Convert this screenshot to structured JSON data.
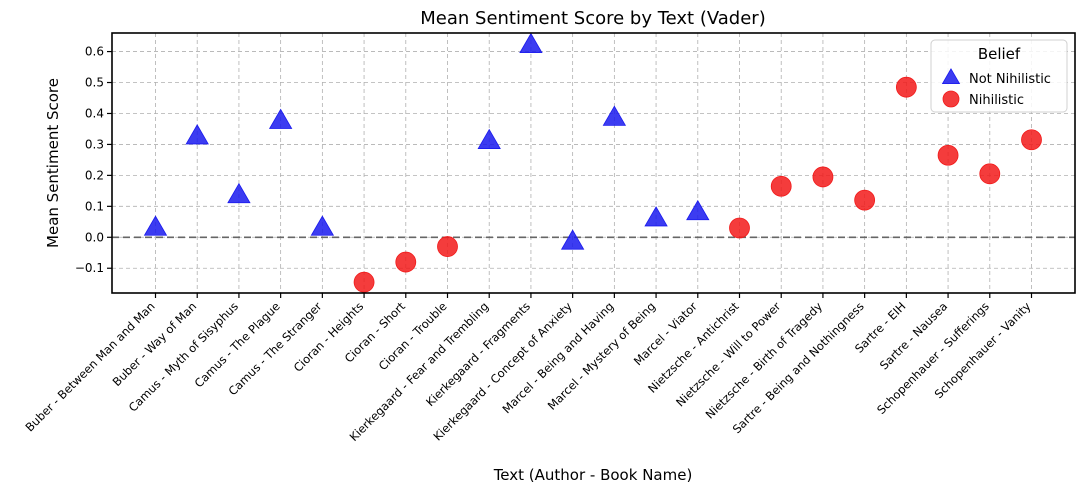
{
  "chart_data": {
    "type": "scatter",
    "title": "Mean Sentiment Score by Text (Vader)",
    "xlabel": "Text (Author - Book Name)",
    "ylabel": "Mean Sentiment Score",
    "ylim": [
      -0.18,
      0.66
    ],
    "yticks": [
      -0.1,
      0.0,
      0.1,
      0.2,
      0.3,
      0.4,
      0.5,
      0.6
    ],
    "ytick_labels": [
      "−0.1",
      "0.0",
      "0.1",
      "0.2",
      "0.3",
      "0.4",
      "0.5",
      "0.6"
    ],
    "grid": true,
    "reference_line": 0.0,
    "legend": {
      "title": "Belief",
      "placement": "top-right"
    },
    "categories": [
      "Buber - Between Man and Man",
      "Buber - Way of Man",
      "Camus - Myth of Sisyphus",
      "Camus - The Plague",
      "Camus - The Stranger",
      "Cioran - Heights",
      "Cioran - Short",
      "Cioran - Trouble",
      "Kierkegaard - Fear and Trembling",
      "Kierkegaard - Fragments",
      "Kierkegaard - Concept of Anxiety",
      "Marcel - Being and Having",
      "Marcel - Mystery of Being",
      "Marcel - Viator",
      "Nietzsche - Antichrist",
      "Nietzsche - Will to Power",
      "Nietzsche - Birth of Tragedy",
      "Sartre - Being and Nothingness",
      "Sartre - EIH",
      "Sartre - Nausea",
      "Schopenhauer - Sufferings",
      "Schopenhauer - Vanity"
    ],
    "series": [
      {
        "name": "Not Nihilistic",
        "marker": "triangle",
        "color": "#1a1aee",
        "points": [
          {
            "x": "Buber - Between Man and Man",
            "y": 0.03
          },
          {
            "x": "Buber - Way of Man",
            "y": 0.325
          },
          {
            "x": "Camus - Myth of Sisyphus",
            "y": 0.135
          },
          {
            "x": "Camus - The Plague",
            "y": 0.375
          },
          {
            "x": "Camus - The Stranger",
            "y": 0.03
          },
          {
            "x": "Kierkegaard - Fear and Trembling",
            "y": 0.31
          },
          {
            "x": "Kierkegaard - Fragments",
            "y": 0.62
          },
          {
            "x": "Kierkegaard - Concept of Anxiety",
            "y": -0.015
          },
          {
            "x": "Marcel - Being and Having",
            "y": 0.385
          },
          {
            "x": "Marcel - Mystery of Being",
            "y": 0.06
          },
          {
            "x": "Marcel - Viator",
            "y": 0.08
          }
        ]
      },
      {
        "name": "Nihilistic",
        "marker": "circle",
        "color": "#f21a1a",
        "points": [
          {
            "x": "Cioran - Heights",
            "y": -0.145
          },
          {
            "x": "Cioran - Short",
            "y": -0.08
          },
          {
            "x": "Cioran - Trouble",
            "y": -0.03
          },
          {
            "x": "Nietzsche - Antichrist",
            "y": 0.03
          },
          {
            "x": "Nietzsche - Will to Power",
            "y": 0.165
          },
          {
            "x": "Nietzsche - Birth of Tragedy",
            "y": 0.195
          },
          {
            "x": "Sartre - Being and Nothingness",
            "y": 0.12
          },
          {
            "x": "Sartre - EIH",
            "y": 0.485
          },
          {
            "x": "Sartre - Nausea",
            "y": 0.265
          },
          {
            "x": "Schopenhauer - Sufferings",
            "y": 0.205
          },
          {
            "x": "Schopenhauer - Vanity",
            "y": 0.315
          }
        ]
      }
    ]
  }
}
